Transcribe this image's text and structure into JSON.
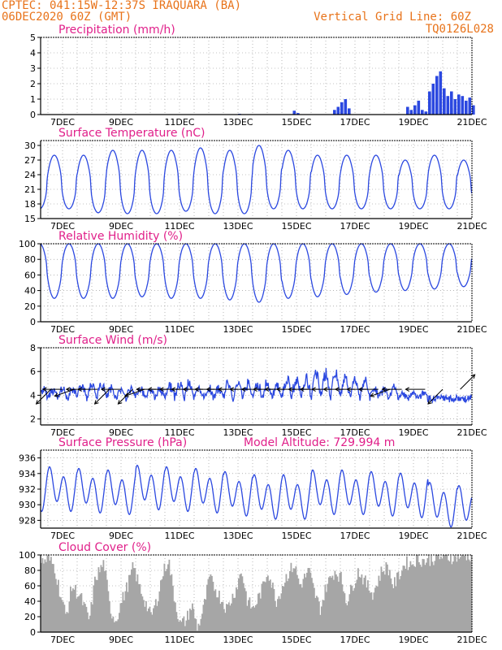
{
  "header": {
    "line1": "CPTEC:  041:15W-12:37S  IRAQUARA (BA)",
    "line2": "06DEC2020 60Z (GMT)",
    "grid_note": "Vertical Grid Line: 60Z",
    "model_code": "TQ0126L028"
  },
  "colors": {
    "header": "#e8731a",
    "title": "#e0208a",
    "line": "#2b48e0",
    "cloud": "#a6a6a6"
  },
  "chart_data": [
    {
      "id": "precip",
      "type": "bar",
      "title": "Precipitation (mm/h)",
      "ylim": [
        0,
        5
      ],
      "yticks": [
        "0",
        "1",
        "2",
        "3",
        "4",
        "5"
      ],
      "xticks": [
        "7DEC",
        "9DEC",
        "11DEC",
        "13DEC",
        "15DEC",
        "17DEC",
        "19DEC",
        "21DEC"
      ],
      "t_start": 6.25,
      "t_end": 21.0,
      "step_hours": 3,
      "events": [
        {
          "start": 13.0,
          "values": [
            0.05
          ]
        },
        {
          "start": 14.875,
          "values": [
            0.25,
            0.1
          ]
        },
        {
          "start": 16.25,
          "values": [
            0.3,
            0.5,
            0.8,
            1.0,
            0.4
          ]
        },
        {
          "start": 18.75,
          "values": [
            0.5,
            0.3
          ]
        },
        {
          "start": 19.0,
          "values": [
            0.6,
            0.9,
            0.3,
            0.2,
            1.4,
            0.8
          ]
        },
        {
          "start": 19.5,
          "values": [
            1.5,
            2.0,
            2.5,
            2.8,
            1.2,
            0.8,
            0.4
          ]
        },
        {
          "start": 19.875,
          "values": [
            1.0,
            1.7,
            1.2,
            1.5,
            1.0,
            1.3
          ]
        },
        {
          "start": 20.5,
          "values": [
            1.0,
            1.2,
            0.9,
            1.1,
            0.6
          ]
        }
      ]
    },
    {
      "id": "temp",
      "type": "line",
      "title": "Surface Temperature (nC)",
      "ylim": [
        15,
        31
      ],
      "yticks": [
        "15",
        "18",
        "21",
        "24",
        "27",
        "30"
      ],
      "xticks": [
        "7DEC",
        "9DEC",
        "11DEC",
        "13DEC",
        "15DEC",
        "17DEC",
        "19DEC",
        "21DEC"
      ],
      "t_start": 6.25,
      "t_end": 21.0,
      "daily_max": [
        28,
        28,
        29,
        29,
        29,
        29.5,
        29,
        30,
        29,
        28,
        28,
        28,
        27,
        28,
        27,
        25,
        24.5
      ],
      "daily_min": [
        17,
        16.2,
        16,
        16,
        16.5,
        16,
        16,
        17,
        17,
        17,
        17,
        17,
        17,
        17,
        17,
        18,
        19
      ],
      "start_value": 18.5
    },
    {
      "id": "rh",
      "type": "line",
      "title": "Relative Humidity (%)",
      "ylim": [
        0,
        100
      ],
      "yticks": [
        "0",
        "20",
        "40",
        "60",
        "80",
        "100"
      ],
      "xticks": [
        "7DEC",
        "9DEC",
        "11DEC",
        "13DEC",
        "15DEC",
        "17DEC",
        "19DEC",
        "21DEC"
      ],
      "t_start": 6.25,
      "t_end": 21.0,
      "daily_min": [
        30,
        30,
        30,
        32,
        30,
        30,
        28,
        25,
        30,
        32,
        35,
        38,
        40,
        42,
        45,
        55,
        65
      ],
      "start_value": 85
    },
    {
      "id": "wind",
      "type": "line",
      "title": "Surface Wind (m/s)",
      "ylim": [
        1.5,
        8
      ],
      "yticks": [
        "2",
        "4",
        "6",
        "8"
      ],
      "xticks": [
        "7DEC",
        "9DEC",
        "11DEC",
        "13DEC",
        "15DEC",
        "17DEC",
        "19DEC",
        "21DEC"
      ],
      "t_start": 6.25,
      "t_end": 21.0,
      "daily_speed": [
        5.0,
        5.5,
        5.0,
        5.0,
        5.5,
        5.0,
        5.5,
        5.5,
        6.0,
        6.5,
        6.0,
        5.0,
        4.5,
        4.0,
        4.0,
        4.5
      ],
      "arrows": [
        {
          "t": 6.6,
          "dir": "SW"
        },
        {
          "t": 7.0,
          "dir": "W"
        },
        {
          "t": 7.4,
          "dir": "WSW"
        },
        {
          "t": 7.8,
          "dir": "W"
        },
        {
          "t": 8.2,
          "dir": "W"
        },
        {
          "t": 8.6,
          "dir": "SW"
        },
        {
          "t": 9.0,
          "dir": "W"
        },
        {
          "t": 9.4,
          "dir": "SW"
        },
        {
          "t": 9.8,
          "dir": "WSW"
        },
        {
          "t": 10.2,
          "dir": "W"
        },
        {
          "t": 10.6,
          "dir": "W"
        },
        {
          "t": 11.0,
          "dir": "W"
        },
        {
          "t": 11.4,
          "dir": "W"
        },
        {
          "t": 11.8,
          "dir": "W"
        },
        {
          "t": 12.2,
          "dir": "W"
        },
        {
          "t": 12.6,
          "dir": "W"
        },
        {
          "t": 13.0,
          "dir": "W"
        },
        {
          "t": 13.4,
          "dir": "W"
        },
        {
          "t": 13.8,
          "dir": "W"
        },
        {
          "t": 14.2,
          "dir": "W"
        },
        {
          "t": 14.6,
          "dir": "W"
        },
        {
          "t": 15.0,
          "dir": "W"
        },
        {
          "t": 15.4,
          "dir": "W"
        },
        {
          "t": 15.8,
          "dir": "W"
        },
        {
          "t": 16.2,
          "dir": "W"
        },
        {
          "t": 16.6,
          "dir": "W"
        },
        {
          "t": 17.0,
          "dir": "W"
        },
        {
          "t": 17.4,
          "dir": "W"
        },
        {
          "t": 17.8,
          "dir": "W"
        },
        {
          "t": 18.2,
          "dir": "WSW"
        },
        {
          "t": 18.6,
          "dir": "W"
        },
        {
          "t": 19.4,
          "dir": "W"
        },
        {
          "t": 20.0,
          "dir": "SW"
        },
        {
          "t": 20.6,
          "dir": "NE"
        }
      ]
    },
    {
      "id": "pres",
      "type": "line",
      "title": "Surface Pressure (hPa)",
      "subtitle": "Model Altitude: 729.994 m",
      "ylim": [
        927,
        937
      ],
      "yticks": [
        "928",
        "930",
        "932",
        "934",
        "936"
      ],
      "xticks": [
        "7DEC",
        "9DEC",
        "11DEC",
        "13DEC",
        "15DEC",
        "17DEC",
        "19DEC",
        "21DEC"
      ],
      "t_start": 6.25,
      "t_end": 21.0,
      "daily_mean": [
        932.0,
        931.8,
        931.6,
        932.2,
        932.0,
        931.8,
        931.4,
        931.0,
        931.0,
        931.6,
        931.6,
        931.4,
        931.2,
        930.0,
        929.6,
        929.4,
        929.0
      ],
      "start_value": 931.0
    },
    {
      "id": "cloud",
      "type": "bar",
      "title": "Cloud Cover (%)",
      "ylim": [
        0,
        100
      ],
      "yticks": [
        "0",
        "20",
        "40",
        "60",
        "80",
        "100"
      ],
      "xticks": [
        "7DEC",
        "9DEC",
        "11DEC",
        "13DEC",
        "15DEC",
        "17DEC",
        "19DEC",
        "21DEC"
      ],
      "t_start": 6.25,
      "t_end": 21.0,
      "step_hours": 1,
      "knots": [
        [
          6.25,
          90
        ],
        [
          6.5,
          95
        ],
        [
          6.7,
          85
        ],
        [
          6.9,
          50
        ],
        [
          7.1,
          20
        ],
        [
          7.3,
          60
        ],
        [
          7.6,
          45
        ],
        [
          7.9,
          15
        ],
        [
          8.1,
          70
        ],
        [
          8.4,
          90
        ],
        [
          8.6,
          30
        ],
        [
          8.8,
          15
        ],
        [
          9.0,
          40
        ],
        [
          9.2,
          60
        ],
        [
          9.4,
          85
        ],
        [
          9.6,
          60
        ],
        [
          9.8,
          40
        ],
        [
          10.0,
          20
        ],
        [
          10.2,
          40
        ],
        [
          10.4,
          75
        ],
        [
          10.6,
          95
        ],
        [
          10.8,
          45
        ],
        [
          11.0,
          10
        ],
        [
          11.2,
          15
        ],
        [
          11.4,
          35
        ],
        [
          11.6,
          5
        ],
        [
          11.8,
          30
        ],
        [
          12.0,
          70
        ],
        [
          12.3,
          50
        ],
        [
          12.6,
          30
        ],
        [
          12.9,
          55
        ],
        [
          13.1,
          80
        ],
        [
          13.3,
          40
        ],
        [
          13.5,
          30
        ],
        [
          13.8,
          55
        ],
        [
          14.0,
          80
        ],
        [
          14.3,
          40
        ],
        [
          14.6,
          70
        ],
        [
          14.9,
          88
        ],
        [
          15.1,
          60
        ],
        [
          15.4,
          80
        ],
        [
          15.6,
          50
        ],
        [
          15.8,
          30
        ],
        [
          16.0,
          60
        ],
        [
          16.3,
          80
        ],
        [
          16.5,
          70
        ],
        [
          16.7,
          40
        ],
        [
          16.9,
          60
        ],
        [
          17.1,
          80
        ],
        [
          17.4,
          60
        ],
        [
          17.6,
          50
        ],
        [
          17.9,
          80
        ],
        [
          18.1,
          85
        ],
        [
          18.3,
          60
        ],
        [
          18.5,
          75
        ],
        [
          18.7,
          90
        ],
        [
          18.9,
          88
        ],
        [
          19.1,
          95
        ],
        [
          19.4,
          92
        ],
        [
          19.7,
          96
        ],
        [
          20.0,
          98
        ],
        [
          20.3,
          97
        ],
        [
          20.6,
          99
        ],
        [
          21.0,
          100
        ]
      ]
    }
  ]
}
